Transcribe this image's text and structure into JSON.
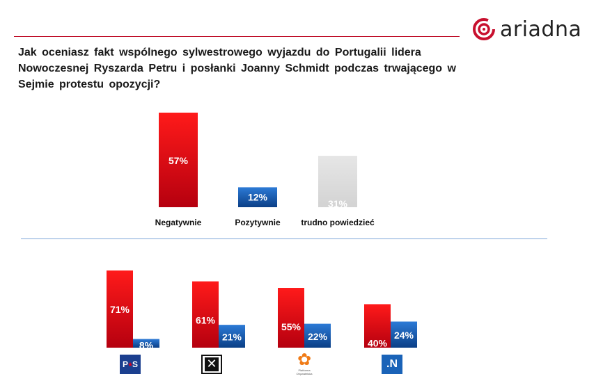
{
  "brand": {
    "name": "ariadna",
    "accent": "#c8102e"
  },
  "question": "Jak oceniasz fakt wspólnego sylwestrowego wyjazdu do Portugalii lidera Nowoczesnej Ryszarda Petru i posłanki Joanny Schmidt podczas trwającego w Sejmie protestu opozycji?",
  "colors": {
    "negative": "#e8001f",
    "positive": "#1a63b8",
    "undecided": "#d9d9d9"
  },
  "chart_data": [
    {
      "type": "bar",
      "categories": [
        "Negatywnie",
        "Pozytywnie",
        "trudno powiedzieć"
      ],
      "values": [
        57,
        12,
        31
      ],
      "value_labels": [
        "57%",
        "12%",
        "31%"
      ],
      "colors": [
        "#e8001f",
        "#1a63b8",
        "#d9d9d9"
      ],
      "ylim": [
        0,
        60
      ]
    },
    {
      "type": "bar",
      "categories": [
        "PiS",
        "Kukiz'15",
        "Platforma Obywatelska",
        ".N"
      ],
      "series": [
        {
          "values": [
            71,
            61,
            55,
            40
          ],
          "value_labels": [
            "71%",
            "61%",
            "55%",
            "40%"
          ],
          "color": "#e8001f"
        },
        {
          "values": [
            8,
            21,
            22,
            24
          ],
          "value_labels": [
            "8%",
            "21%",
            "22%",
            "24%"
          ],
          "color": "#1a63b8"
        }
      ],
      "ylim": [
        0,
        75
      ]
    }
  ],
  "party_logos": {
    "pis": {
      "text": "PiS",
      "icon": "pis-logo-icon"
    },
    "kukiz": {
      "icon": "kukiz15-logo-icon"
    },
    "po": {
      "text": "Platforma Obywatelska",
      "icon": "po-logo-icon"
    },
    "n": {
      "text": ".N",
      "icon": "nowoczesna-logo-icon"
    }
  }
}
